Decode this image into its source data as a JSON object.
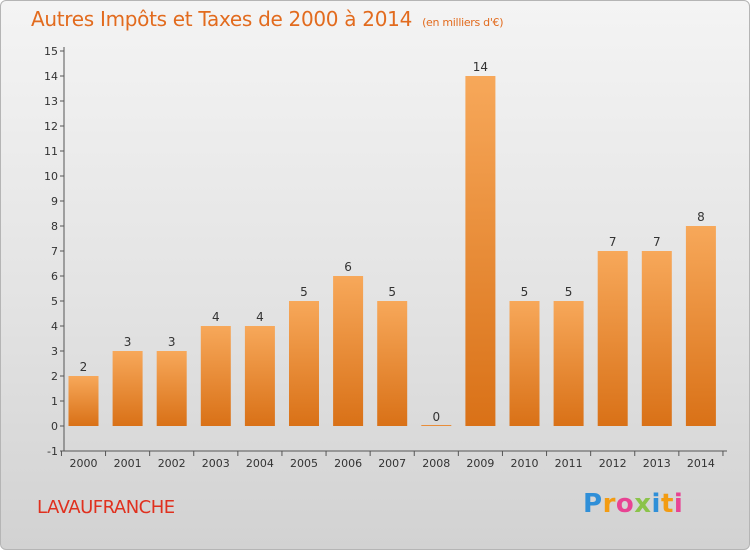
{
  "header": {
    "title": "Autres Impôts et Taxes de 2000 à 2014",
    "subtitle": "(en milliers d'€)"
  },
  "commune": "LAVAUFRANCHE",
  "logo": {
    "letters": [
      "P",
      "r",
      "o",
      "x",
      "i",
      "t",
      "i"
    ],
    "colors": [
      "#2f8fd8",
      "#f39c12",
      "#e84393",
      "#8bc34a",
      "#2f8fd8",
      "#f39c12",
      "#e84393"
    ]
  },
  "colors": {
    "title": "#e26b1e",
    "bar_top": "#f7a85a",
    "bar_bottom": "#d97117",
    "commune": "#e0301e"
  },
  "chart_data": {
    "type": "bar",
    "title": "Autres Impôts et Taxes de 2000 à 2014",
    "subtitle": "(en milliers d'€)",
    "categories": [
      "2000",
      "2001",
      "2002",
      "2003",
      "2004",
      "2005",
      "2006",
      "2007",
      "2008",
      "2009",
      "2010",
      "2011",
      "2012",
      "2013",
      "2014"
    ],
    "values": [
      2,
      3,
      3,
      4,
      4,
      5,
      6,
      5,
      0,
      14,
      5,
      5,
      7,
      7,
      8
    ],
    "data_labels": [
      "2",
      "3",
      "3",
      "4",
      "4",
      "5",
      "6",
      "5",
      "0",
      "14",
      "5",
      "5",
      "7",
      "7",
      "8"
    ],
    "ylim": [
      -1,
      15
    ],
    "yticks": [
      "-1",
      "0",
      "1",
      "2",
      "3",
      "4",
      "5",
      "6",
      "7",
      "8",
      "9",
      "10",
      "11",
      "12",
      "13",
      "14",
      "15"
    ],
    "grid": false,
    "legend": "none"
  }
}
